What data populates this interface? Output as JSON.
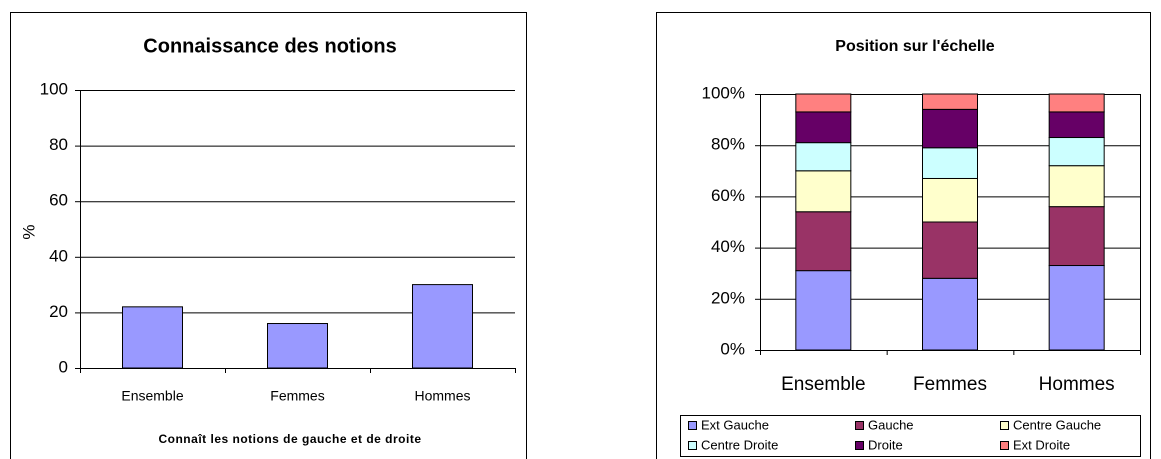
{
  "chart_data": [
    {
      "type": "bar",
      "title": "Connaissance des notions",
      "y_label": "%",
      "x_label": "Connaît les notions de gauche et de droite",
      "categories": [
        "Ensemble",
        "Femmes",
        "Hommes"
      ],
      "values": [
        22,
        16,
        30
      ],
      "color": "#9999ff",
      "ylim": [
        0,
        100
      ],
      "yticks": [
        0,
        20,
        40,
        60,
        80,
        100
      ],
      "grid": true
    },
    {
      "type": "stacked_bar",
      "title": "Position sur l'échelle",
      "categories": [
        "Ensemble",
        "Femmes",
        "Hommes"
      ],
      "series": [
        {
          "name": "Ext Gauche",
          "color": "#9999ff",
          "values": [
            31,
            28,
            33
          ]
        },
        {
          "name": "Gauche",
          "color": "#993366",
          "values": [
            23,
            22,
            23
          ]
        },
        {
          "name": "Centre Gauche",
          "color": "#ffffcc",
          "values": [
            16,
            17,
            16
          ]
        },
        {
          "name": "Centre Droite",
          "color": "#ccffff",
          "values": [
            11,
            12,
            11
          ]
        },
        {
          "name": "Droite",
          "color": "#660066",
          "values": [
            12,
            15,
            10
          ]
        },
        {
          "name": "Ext Droite",
          "color": "#ff8080",
          "values": [
            7,
            6,
            7
          ]
        }
      ],
      "ylim": [
        0,
        100
      ],
      "yticks": [
        {
          "value": 0,
          "label": "0%"
        },
        {
          "value": 20,
          "label": "20%"
        },
        {
          "value": 40,
          "label": "40%"
        },
        {
          "value": 60,
          "label": "60%"
        },
        {
          "value": 80,
          "label": "80%"
        },
        {
          "value": 100,
          "label": "100%"
        }
      ],
      "grid": true,
      "legend": "bottom"
    }
  ]
}
